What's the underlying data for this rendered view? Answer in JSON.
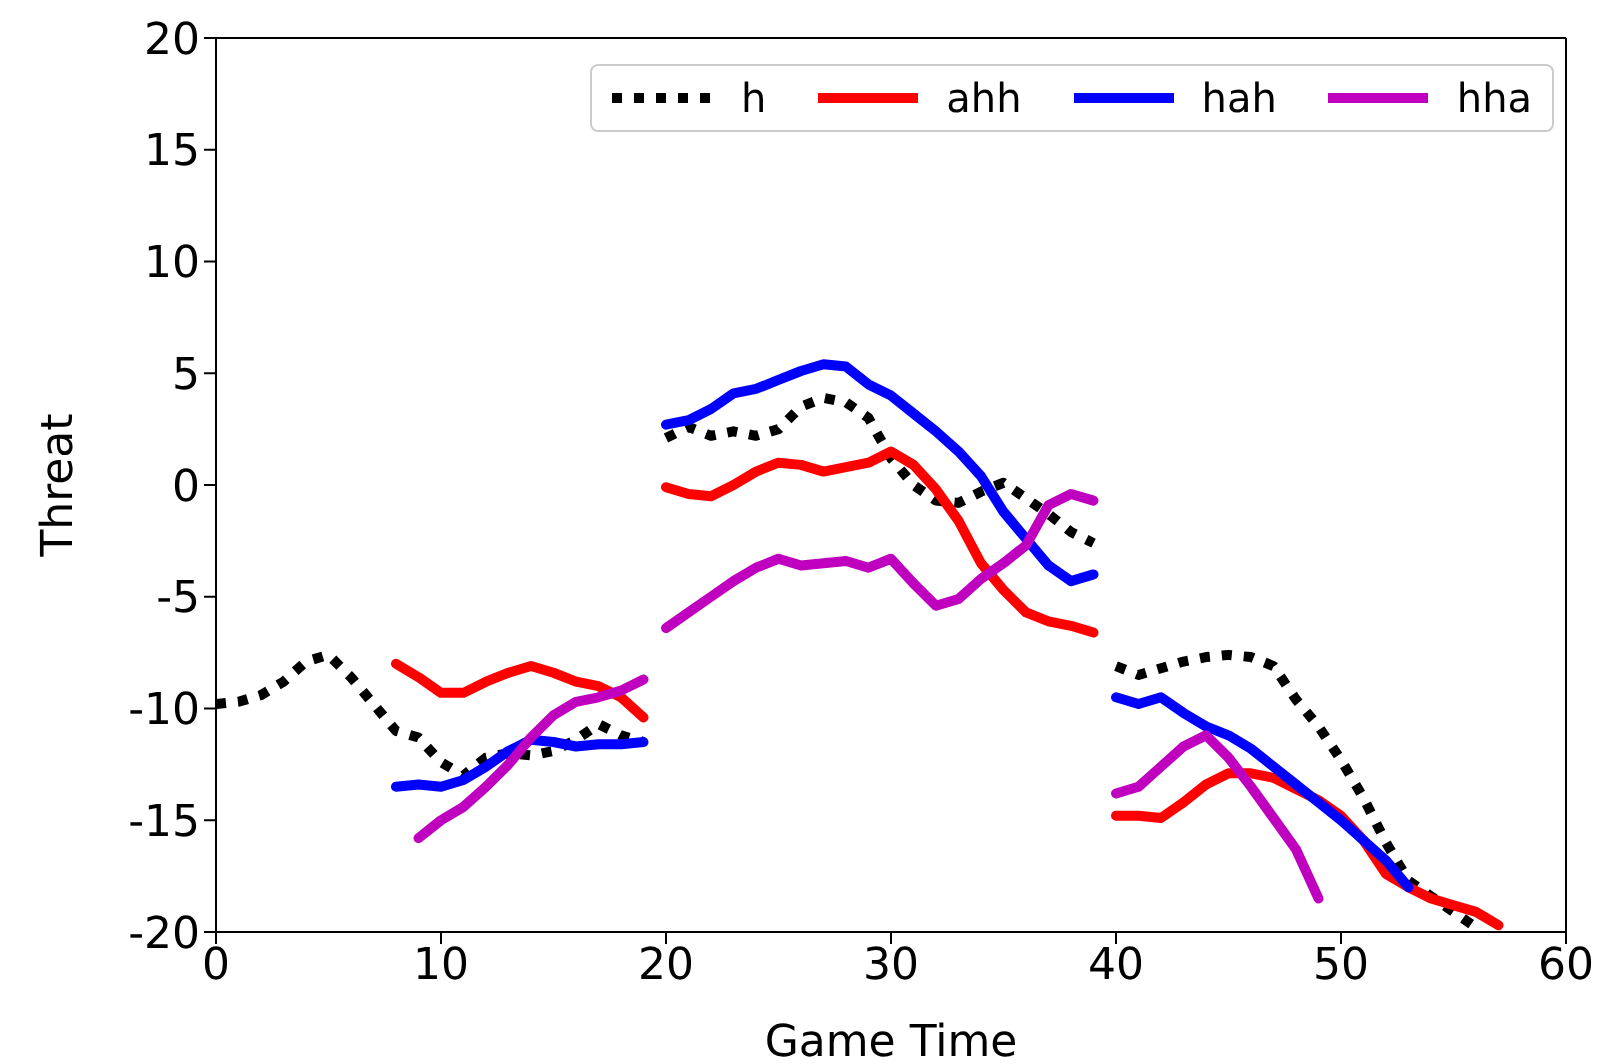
{
  "chart_data": {
    "type": "line",
    "xlabel": "Game Time",
    "ylabel": "Threat",
    "xlim": [
      0,
      60
    ],
    "ylim": [
      -20,
      20
    ],
    "xticks": [
      0,
      10,
      20,
      30,
      40,
      50,
      60
    ],
    "yticks": [
      -20,
      -15,
      -10,
      -5,
      0,
      5,
      10,
      15,
      20
    ],
    "legend": "top right",
    "marker": "none",
    "series": [
      {
        "name": "h",
        "color": "#000000",
        "line_style": "dotted",
        "x": [
          0,
          1,
          2,
          3,
          4,
          5,
          6,
          7,
          8,
          9,
          10,
          11,
          12,
          13,
          14,
          15,
          16,
          17,
          18,
          19,
          19.5,
          20,
          21,
          22,
          23,
          24,
          25,
          26,
          27,
          28,
          29,
          30,
          31,
          32,
          33,
          34,
          35,
          36,
          37,
          38,
          39,
          39.5,
          40,
          41,
          42,
          43,
          44,
          45,
          46,
          47,
          48,
          49,
          50,
          51,
          52,
          53,
          54,
          55,
          56
        ],
        "values": [
          -9.8,
          -9.7,
          -9.4,
          -8.8,
          -7.9,
          -7.6,
          -8.6,
          -9.8,
          -11.0,
          -11.3,
          -12.4,
          -13.0,
          -12.2,
          -12.0,
          -12.1,
          -11.9,
          -11.4,
          -10.7,
          -11.2,
          -11.5,
          null,
          2.1,
          2.6,
          2.2,
          2.4,
          2.2,
          2.5,
          3.5,
          3.9,
          3.7,
          3.0,
          1.2,
          0.0,
          -0.7,
          -0.8,
          -0.3,
          0.1,
          -0.6,
          -1.3,
          -2.1,
          -2.6,
          null,
          -8.1,
          -8.5,
          -8.2,
          -7.9,
          -7.7,
          -7.6,
          -7.7,
          -8.1,
          -9.6,
          -10.8,
          -12.3,
          -14.0,
          -16.0,
          -17.7,
          -18.4,
          -19.1,
          -19.8
        ]
      },
      {
        "name": "ahh",
        "color": "#ff0000",
        "line_style": "solid",
        "x": [
          8,
          9,
          10,
          11,
          12,
          13,
          14,
          15,
          16,
          17,
          18,
          19,
          19.5,
          20,
          21,
          22,
          23,
          24,
          25,
          26,
          27,
          28,
          29,
          30,
          31,
          32,
          33,
          34,
          35,
          36,
          37,
          38,
          39,
          39.5,
          40,
          41,
          42,
          43,
          44,
          45,
          46,
          47,
          48,
          49,
          50,
          51,
          52,
          53,
          54,
          55,
          56,
          57
        ],
        "values": [
          -8.0,
          -8.6,
          -9.3,
          -9.3,
          -8.8,
          -8.4,
          -8.1,
          -8.4,
          -8.8,
          -9.0,
          -9.5,
          -10.4,
          null,
          -0.1,
          -0.4,
          -0.5,
          0.0,
          0.6,
          1.0,
          0.9,
          0.6,
          0.8,
          1.0,
          1.5,
          0.9,
          -0.2,
          -1.6,
          -3.5,
          -4.7,
          -5.7,
          -6.1,
          -6.3,
          -6.6,
          null,
          -14.8,
          -14.8,
          -14.9,
          -14.2,
          -13.4,
          -12.9,
          -12.9,
          -13.1,
          -13.6,
          -14.1,
          -14.8,
          -15.9,
          -17.4,
          -18.0,
          -18.5,
          -18.8,
          -19.1,
          -19.7
        ]
      },
      {
        "name": "hah",
        "color": "#0000ff",
        "line_style": "solid",
        "x": [
          8,
          9,
          10,
          11,
          12,
          13,
          14,
          15,
          16,
          17,
          18,
          19,
          19.5,
          20,
          21,
          22,
          23,
          24,
          25,
          26,
          27,
          28,
          29,
          30,
          31,
          32,
          33,
          34,
          35,
          36,
          37,
          38,
          39,
          39.5,
          40,
          41,
          42,
          43,
          44,
          45,
          46,
          47,
          48,
          49,
          50,
          51,
          52,
          53
        ],
        "values": [
          -13.5,
          -13.4,
          -13.5,
          -13.2,
          -12.6,
          -11.9,
          -11.4,
          -11.5,
          -11.7,
          -11.6,
          -11.6,
          -11.5,
          null,
          2.7,
          2.9,
          3.4,
          4.1,
          4.3,
          4.7,
          5.1,
          5.4,
          5.3,
          4.5,
          4.0,
          3.2,
          2.4,
          1.5,
          0.4,
          -1.2,
          -2.4,
          -3.6,
          -4.3,
          -4.0,
          null,
          -9.5,
          -9.8,
          -9.5,
          -10.2,
          -10.8,
          -11.2,
          -11.8,
          -12.6,
          -13.4,
          -14.2,
          -15.0,
          -15.9,
          -16.8,
          -18.0
        ]
      },
      {
        "name": "hha",
        "color": "#bf00bf",
        "line_style": "solid",
        "x": [
          9,
          10,
          11,
          12,
          13,
          14,
          15,
          16,
          17,
          18,
          19,
          19.5,
          20,
          21,
          22,
          23,
          24,
          25,
          26,
          27,
          28,
          29,
          30,
          31,
          32,
          33,
          34,
          35,
          36,
          37,
          38,
          39,
          39.5,
          40,
          41,
          42,
          43,
          44,
          45,
          46,
          47,
          48,
          49
        ],
        "values": [
          -15.8,
          -15.0,
          -14.4,
          -13.5,
          -12.5,
          -11.3,
          -10.3,
          -9.7,
          -9.5,
          -9.2,
          -8.7,
          null,
          -6.4,
          -5.7,
          -5.0,
          -4.3,
          -3.7,
          -3.3,
          -3.6,
          -3.5,
          -3.4,
          -3.7,
          -3.3,
          -4.4,
          -5.4,
          -5.1,
          -4.2,
          -3.5,
          -2.7,
          -0.9,
          -0.4,
          -0.7,
          null,
          -13.8,
          -13.5,
          -12.6,
          -11.7,
          -11.2,
          -12.2,
          -13.5,
          -14.9,
          -16.3,
          -18.5
        ]
      }
    ]
  }
}
